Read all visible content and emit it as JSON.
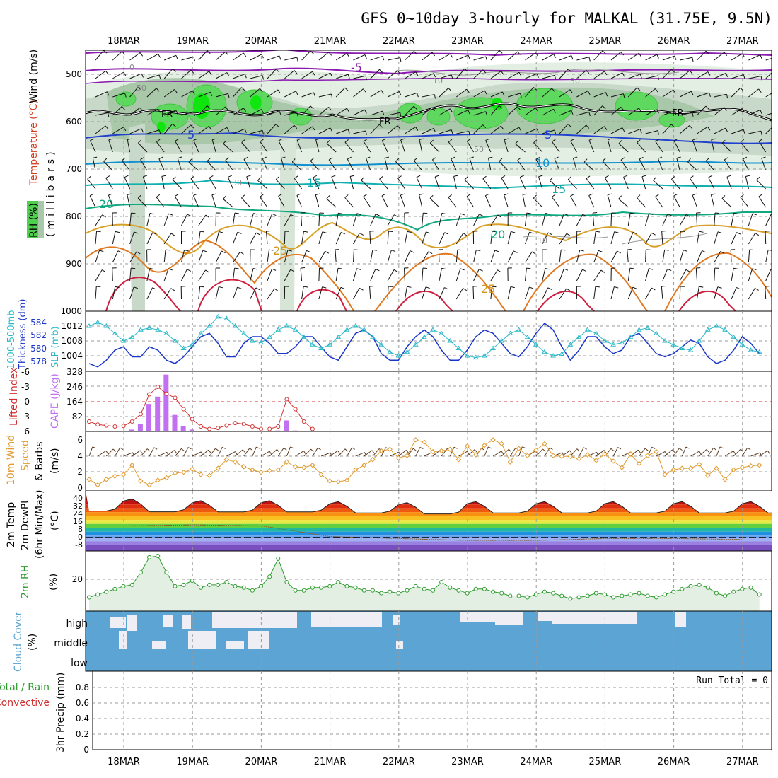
{
  "title": "GFS 0~10day 3-hourly for MALKAL (31.75E, 9.5N)",
  "dates": [
    "18MAR",
    "19MAR",
    "20MAR",
    "21MAR",
    "22MAR",
    "23MAR",
    "24MAR",
    "25MAR",
    "26MAR",
    "27MAR"
  ],
  "panels": {
    "upper": {
      "ylabel_rh": "RH (%)",
      "ylabel_temp": "Temperature (°C)",
      "ylabel_wind": "Wind (m/s)",
      "ylabel_units": "(millibars)",
      "yticks": [
        "500",
        "600",
        "700",
        "800",
        "900",
        "1000"
      ],
      "contour_labels": [
        {
          "text": "-5",
          "color": "#8a1ab0"
        },
        {
          "text": "FR",
          "color": "#000000"
        },
        {
          "text": "FR",
          "color": "#000000"
        },
        {
          "text": "FR",
          "color": "#000000"
        },
        {
          "text": "5",
          "color": "#2040d0"
        },
        {
          "text": "5",
          "color": "#2040d0"
        },
        {
          "text": "10",
          "color": "#1090d0"
        },
        {
          "text": "15",
          "color": "#10a8a8"
        },
        {
          "text": "15",
          "color": "#10a8a8"
        },
        {
          "text": "20",
          "color": "#10a880"
        },
        {
          "text": "20",
          "color": "#10a880"
        },
        {
          "text": "25",
          "color": "#d09a20"
        },
        {
          "text": "25",
          "color": "#d09a20"
        },
        {
          "text": "0",
          "color": "#888888"
        },
        {
          "text": "50",
          "color": "#888888"
        },
        {
          "text": "10",
          "color": "#888888"
        },
        {
          "text": "30",
          "color": "#888888"
        },
        {
          "text": "50",
          "color": "#888888"
        },
        {
          "text": "50",
          "color": "#888888"
        },
        {
          "text": "30",
          "color": "#888888"
        },
        {
          "text": "10",
          "color": "#888888"
        }
      ]
    },
    "slp": {
      "ylabel1": "1000-500mb",
      "ylabel2": "Thickness (dm)",
      "ylabel3": "SLP (mb)",
      "yticks_left": [
        "584",
        "582",
        "580",
        "578"
      ],
      "yticks_right": [
        "1012",
        "1008",
        "1004"
      ]
    },
    "cape": {
      "ylabel1": "Lifted Index",
      "ylabel2": "CAPE (J/kg)",
      "yticks_left": [
        "-6",
        "-3",
        "0",
        "3",
        "6"
      ],
      "yticks_right": [
        "328",
        "246",
        "164",
        "82"
      ]
    },
    "wind10": {
      "ylabel1": "10m Wind",
      "ylabel2": "Speed",
      "ylabel3": "& Barbs",
      "ylabel_units": "(m/s)",
      "yticks": [
        "6",
        "4",
        "2",
        "0"
      ]
    },
    "temp2m": {
      "ylabel1": "2m Temp",
      "ylabel2": "2m DewPt",
      "ylabel3": "(6hr Min/Max)",
      "ylabel_units": "(°C)",
      "yticks": [
        "40",
        "32",
        "24",
        "16",
        "8",
        "0",
        "-8"
      ]
    },
    "rh2m": {
      "ylabel1": "2m RH",
      "ylabel_units": "(%)",
      "yticks": [
        "20"
      ]
    },
    "cloud": {
      "ylabel1": "Cloud Cover",
      "ylabel_units": "(%)",
      "levels": [
        "high",
        "middle",
        "low"
      ]
    },
    "precip": {
      "ylabel1": "Total / Rain",
      "ylabel2": "Convective",
      "ylabel3": "3hr Precip (mm)",
      "yticks": [
        "0.8",
        "0.6",
        "0.4",
        "0.2",
        "0"
      ],
      "run_total": "Run Total = 0"
    }
  },
  "colors": {
    "thickness": "#1a35c8",
    "slp": "#28b8c8",
    "cape": "#c070f0",
    "lifted": "#d03030",
    "wind": "#e09a30",
    "rh": "#2a9a2a",
    "cloud": "#5ba4d4"
  },
  "chart_data": [
    {
      "type": "line",
      "title": "1000-500mb Thickness / SLP",
      "x": [
        "17MAR12",
        "17MAR15",
        "17MAR18",
        "17MAR21",
        "18MAR00",
        "18MAR03",
        "18MAR06",
        "18MAR09",
        "18MAR12",
        "18MAR15",
        "18MAR18",
        "18MAR21",
        "19MAR00",
        "19MAR03",
        "19MAR06",
        "19MAR09",
        "19MAR12",
        "19MAR15",
        "19MAR18",
        "19MAR21",
        "20MAR00",
        "20MAR03",
        "20MAR06",
        "20MAR09",
        "20MAR12",
        "20MAR15",
        "20MAR18",
        "20MAR21",
        "21MAR00",
        "21MAR03",
        "21MAR06",
        "21MAR09",
        "21MAR12",
        "21MAR15",
        "21MAR18",
        "21MAR21",
        "22MAR00",
        "22MAR03",
        "22MAR06",
        "22MAR09",
        "22MAR12",
        "22MAR15",
        "22MAR18",
        "22MAR21",
        "23MAR00",
        "23MAR03",
        "23MAR06",
        "23MAR09",
        "23MAR12",
        "23MAR15",
        "23MAR18",
        "23MAR21",
        "24MAR00",
        "24MAR03",
        "24MAR06",
        "24MAR09",
        "24MAR12",
        "24MAR15",
        "24MAR18",
        "24MAR21",
        "25MAR00",
        "25MAR03",
        "25MAR06",
        "25MAR09",
        "25MAR12",
        "25MAR15",
        "25MAR18",
        "25MAR21",
        "26MAR00",
        "26MAR03",
        "26MAR06",
        "26MAR09",
        "26MAR12",
        "26MAR15",
        "26MAR18",
        "26MAR21",
        "27MAR00",
        "27MAR03",
        "27MAR06"
      ],
      "series": [
        {
          "name": "Thickness (dm)",
          "values": [
            578,
            577.5,
            578.5,
            580,
            580.5,
            579,
            579,
            580.5,
            580,
            578.5,
            578,
            579,
            580.5,
            582,
            582.5,
            581,
            579,
            579,
            581,
            582,
            582,
            581,
            579.5,
            579.5,
            580.5,
            582,
            582,
            580.5,
            579,
            578.5,
            580.5,
            582.5,
            583,
            582,
            579.5,
            578.5,
            578.5,
            580.5,
            582,
            583,
            582,
            580,
            578.5,
            578.5,
            580,
            582,
            583,
            582.5,
            581,
            579.5,
            579,
            580.5,
            582.5,
            584,
            583,
            580.5,
            578.5,
            580,
            582,
            582,
            580.5,
            579.5,
            580,
            582,
            582.5,
            581,
            579.5,
            579,
            579.5,
            580.5,
            581.5,
            581,
            579,
            578,
            578.5,
            580,
            582,
            581,
            579.5
          ]
        },
        {
          "name": "SLP (mb)",
          "values": [
            1012,
            1013,
            1012,
            1010,
            1008,
            1009,
            1011,
            1011.5,
            1011,
            1010,
            1008,
            1006,
            1007,
            1010,
            1012,
            1014.5,
            1014,
            1012,
            1010,
            1008,
            1007.5,
            1009,
            1011,
            1012,
            1011,
            1009,
            1007,
            1006,
            1007,
            1009,
            1011,
            1012,
            1011,
            1009,
            1007,
            1005,
            1004,
            1005,
            1007,
            1009,
            1011,
            1010,
            1008,
            1006,
            1004,
            1003.5,
            1004,
            1006,
            1008,
            1010,
            1011,
            1009,
            1007,
            1005,
            1004,
            1004.5,
            1007,
            1009,
            1011,
            1010,
            1008,
            1007,
            1007.5,
            1009,
            1011,
            1011.5,
            1010,
            1008,
            1007,
            1006,
            1005.5,
            1008,
            1011,
            1012,
            1011,
            1009,
            1007,
            1005.5,
            1005
          ]
        }
      ]
    },
    {
      "type": "bar",
      "title": "Lifted Index / CAPE",
      "x": [
        "17MAR12",
        "17MAR15",
        "17MAR18",
        "17MAR21",
        "18MAR00",
        "18MAR03",
        "18MAR06",
        "18MAR09",
        "18MAR12",
        "18MAR15",
        "18MAR18",
        "18MAR21",
        "19MAR00",
        "19MAR03",
        "19MAR06",
        "19MAR09",
        "19MAR12",
        "19MAR15",
        "19MAR18",
        "19MAR21",
        "20MAR00",
        "20MAR03",
        "20MAR06",
        "20MAR09",
        "20MAR12",
        "20MAR15",
        "20MAR18"
      ],
      "series": [
        {
          "name": "CAPE (J/kg)",
          "values": [
            0,
            0,
            0,
            0,
            0,
            10,
            40,
            150,
            190,
            310,
            90,
            30,
            10,
            0,
            0,
            0,
            0,
            0,
            0,
            0,
            0,
            0,
            5,
            60,
            5,
            0,
            0
          ]
        },
        {
          "name": "Lifted Index",
          "values": [
            4,
            4.6,
            4.8,
            5,
            4.9,
            4,
            2.5,
            -1.5,
            -3,
            -1.6,
            -0.8,
            1.5,
            3.5,
            5,
            5.5,
            5.3,
            4.8,
            4.3,
            4.5,
            5,
            5.5,
            5.5,
            5,
            -0.5,
            1.5,
            4,
            5.5
          ]
        }
      ],
      "ylim_left": [
        6,
        -6
      ],
      "ylim_right": [
        0,
        328
      ]
    },
    {
      "type": "line",
      "title": "10m Wind Speed",
      "x": [
        "17MAR12",
        "17MAR15",
        "17MAR18",
        "17MAR21",
        "18MAR00",
        "18MAR03",
        "18MAR06",
        "18MAR09",
        "18MAR12",
        "18MAR15",
        "18MAR18",
        "18MAR21",
        "19MAR00",
        "19MAR03",
        "19MAR06",
        "19MAR09",
        "19MAR12",
        "19MAR15",
        "19MAR18",
        "19MAR21",
        "20MAR00",
        "20MAR03",
        "20MAR06",
        "20MAR09",
        "20MAR12",
        "20MAR15",
        "20MAR18",
        "20MAR21",
        "21MAR00",
        "21MAR03",
        "21MAR06",
        "21MAR09",
        "21MAR12",
        "21MAR15",
        "21MAR18",
        "21MAR21",
        "22MAR00",
        "22MAR03",
        "22MAR06",
        "22MAR09",
        "22MAR12",
        "22MAR15",
        "22MAR18",
        "22MAR21",
        "23MAR00",
        "23MAR03",
        "23MAR06",
        "23MAR09",
        "23MAR12",
        "23MAR15",
        "23MAR18",
        "23MAR21",
        "24MAR00",
        "24MAR03",
        "24MAR06",
        "24MAR09",
        "24MAR12",
        "24MAR15",
        "24MAR18",
        "24MAR21",
        "25MAR00",
        "25MAR03",
        "25MAR06",
        "25MAR09",
        "25MAR12",
        "25MAR15",
        "25MAR18",
        "25MAR21",
        "26MAR00",
        "26MAR03",
        "26MAR06",
        "26MAR09",
        "26MAR12",
        "26MAR15",
        "26MAR18",
        "26MAR21",
        "27MAR00",
        "27MAR03",
        "27MAR06"
      ],
      "series": [
        {
          "name": "Speed (m/s)",
          "values": [
            1,
            0.3,
            1,
            1.4,
            1.6,
            2.8,
            0.8,
            0.3,
            0.9,
            1.2,
            1.8,
            1.9,
            2.3,
            1.6,
            1.5,
            2.4,
            3.5,
            3.2,
            2.6,
            2.2,
            1.9,
            2.1,
            2.2,
            3.2,
            2.6,
            2.5,
            2.8,
            1.6,
            0.8,
            0.7,
            0.9,
            2.2,
            2.8,
            3.5,
            4.6,
            4.8,
            3.7,
            4,
            6,
            5.7,
            4.5,
            4.6,
            4.8,
            3.5,
            5.2,
            4.1,
            5.3,
            6,
            5.5,
            3.2,
            4.9,
            4,
            4.7,
            5.5,
            4,
            3.9,
            3.9,
            3.6,
            4.1,
            3.4,
            4.2,
            3.3,
            2.5,
            4.2,
            3,
            4,
            4.5,
            1.6,
            2.2,
            2.4,
            2.4,
            2.9,
            1.5,
            2.4,
            1,
            2.2,
            2.5,
            2.7,
            2.8
          ]
        }
      ],
      "ylim": [
        0,
        6
      ]
    },
    {
      "type": "area",
      "title": "2m Temp / 2m DewPt",
      "x": [
        "18MAR",
        "19MAR",
        "20MAR",
        "21MAR",
        "22MAR",
        "23MAR",
        "24MAR",
        "25MAR",
        "26MAR",
        "27MAR"
      ],
      "series": [
        {
          "name": "Max Temp",
          "values": [
            39,
            40,
            38,
            38,
            37,
            36,
            37,
            37,
            37,
            37
          ]
        },
        {
          "name": "Min Temp",
          "values": [
            26,
            25,
            25,
            25,
            24,
            23,
            24,
            24,
            24,
            24
          ]
        },
        {
          "name": "DewPt",
          "values": [
            12,
            13,
            12,
            1,
            -1,
            -3,
            -3,
            -1,
            -1,
            -2
          ]
        }
      ],
      "ylim": [
        -12,
        44
      ]
    },
    {
      "type": "area",
      "title": "2m RH",
      "x": [
        "17MAR12",
        "17MAR15",
        "17MAR18",
        "17MAR21",
        "18MAR00",
        "18MAR03",
        "18MAR06",
        "18MAR09",
        "18MAR12",
        "18MAR15",
        "18MAR18",
        "18MAR21",
        "19MAR00",
        "19MAR03",
        "19MAR06",
        "19MAR09",
        "19MAR12",
        "19MAR15",
        "19MAR18",
        "19MAR21",
        "20MAR00",
        "20MAR03",
        "20MAR06",
        "20MAR09",
        "20MAR12",
        "20MAR15",
        "20MAR18",
        "20MAR21",
        "21MAR00",
        "21MAR03",
        "21MAR06",
        "21MAR09",
        "21MAR12",
        "21MAR15",
        "21MAR18",
        "21MAR21",
        "22MAR00",
        "22MAR03",
        "22MAR06",
        "22MAR09",
        "22MAR12",
        "22MAR15",
        "22MAR18",
        "22MAR21",
        "23MAR00",
        "23MAR03",
        "23MAR06",
        "23MAR09",
        "23MAR12",
        "23MAR15",
        "23MAR18",
        "23MAR21",
        "24MAR00",
        "24MAR03",
        "24MAR06",
        "24MAR09",
        "24MAR12",
        "24MAR15",
        "24MAR18",
        "24MAR21",
        "25MAR00",
        "25MAR03",
        "25MAR06",
        "25MAR09",
        "25MAR12",
        "25MAR15",
        "25MAR18",
        "25MAR21",
        "26MAR00",
        "26MAR03",
        "26MAR06",
        "26MAR09",
        "26MAR12",
        "26MAR15",
        "26MAR18",
        "26MAR21",
        "27MAR00",
        "27MAR03",
        "27MAR06"
      ],
      "series": [
        {
          "name": "RH (%)",
          "values": [
            9,
            11,
            13,
            15,
            17,
            18,
            27,
            38,
            39,
            27,
            17,
            18,
            21,
            16,
            18,
            18,
            20,
            17,
            16,
            14,
            17,
            24,
            37,
            20,
            14,
            14,
            16,
            16,
            17,
            20,
            17,
            16,
            14,
            14,
            12,
            13,
            12,
            14,
            17,
            15,
            14,
            20,
            16,
            14,
            12,
            15,
            15,
            13,
            12,
            10,
            10,
            9,
            11,
            13,
            12,
            10,
            8,
            9,
            10,
            12,
            11,
            9,
            10,
            11,
            12,
            10,
            9,
            11,
            13,
            15,
            17,
            18,
            16,
            12,
            10,
            13,
            15,
            16,
            11
          ]
        }
      ],
      "ylim": [
        0,
        45
      ]
    },
    {
      "type": "bar",
      "title": "3hr Precip",
      "x": [
        "18MAR",
        "19MAR",
        "20MAR",
        "21MAR",
        "22MAR",
        "23MAR",
        "24MAR",
        "25MAR",
        "26MAR",
        "27MAR"
      ],
      "series": [
        {
          "name": "Total / Rain",
          "values": [
            0,
            0,
            0,
            0,
            0,
            0,
            0,
            0,
            0,
            0
          ]
        }
      ],
      "ylim": [
        0,
        0.9
      ]
    }
  ]
}
